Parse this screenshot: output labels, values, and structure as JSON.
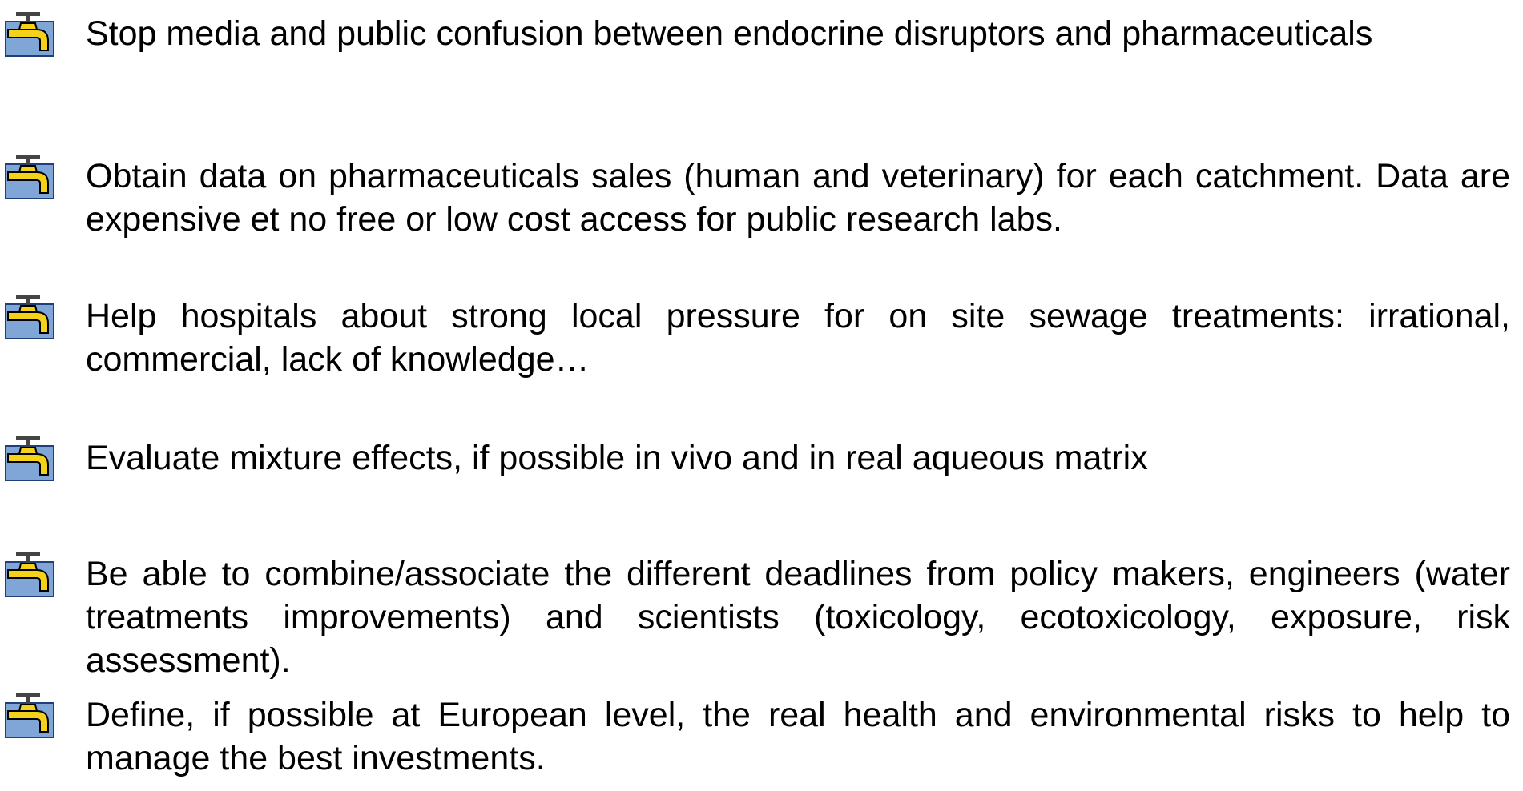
{
  "items": [
    {
      "text": "Stop media and public confusion between endocrine disruptors and pharmaceuticals"
    },
    {
      "text": "Obtain data on pharmaceuticals sales (human and veterinary) for each catchment. Data are expensive et no free or low cost access for public research labs."
    },
    {
      "text": "Help hospitals about strong local pressure for on site sewage treatments: irrational, commercial, lack of knowledge…"
    },
    {
      "text": "Evaluate mixture effects, if possible in vivo and in real aqueous matrix"
    },
    {
      "text": "Be able to combine/associate the different deadlines from policy makers, engineers (water treatments improvements) and scientists (toxicology, ecotoxicology, exposure, risk assessment)."
    },
    {
      "text": "Define, if possible at European level, the real health and environmental risks to help to manage the best investments."
    }
  ]
}
